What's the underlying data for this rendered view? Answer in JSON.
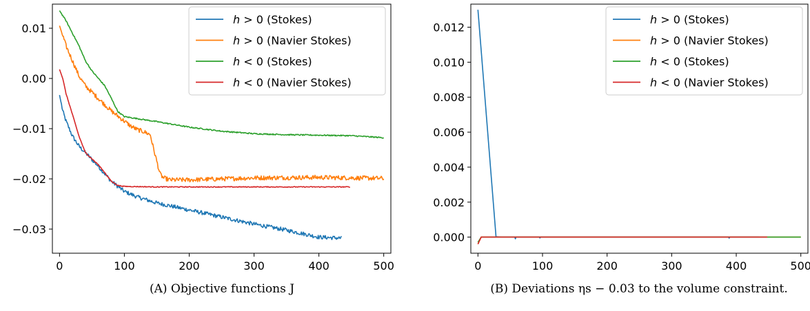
{
  "chart_data": [
    {
      "type": "line",
      "caption": "(A) Objective functions J",
      "xlim": [
        -11,
        511
      ],
      "ylim": [
        -0.0348,
        0.0148
      ],
      "xticks": [
        0,
        100,
        200,
        300,
        400,
        500
      ],
      "yticks": [
        0.01,
        0.0,
        -0.01,
        -0.02,
        -0.03
      ],
      "ytick_labels": [
        "0.01",
        "0.00",
        "−0.01",
        "−0.02",
        "−0.03"
      ],
      "legend_position": "top-right",
      "series": [
        {
          "name": "h > 0 (Stokes)",
          "color": "#1f77b4",
          "noise": 0.0004,
          "end": 435,
          "points": [
            [
              0,
              -0.0033
            ],
            [
              5,
              -0.0065
            ],
            [
              10,
              -0.0085
            ],
            [
              20,
              -0.0115
            ],
            [
              30,
              -0.0135
            ],
            [
              40,
              -0.0148
            ],
            [
              60,
              -0.0175
            ],
            [
              80,
              -0.0205
            ],
            [
              100,
              -0.0225
            ],
            [
              120,
              -0.0236
            ],
            [
              150,
              -0.0248
            ],
            [
              200,
              -0.0262
            ],
            [
              250,
              -0.0276
            ],
            [
              300,
              -0.029
            ],
            [
              350,
              -0.0302
            ],
            [
              400,
              -0.0316
            ],
            [
              435,
              -0.0318
            ]
          ]
        },
        {
          "name": "h > 0 (Navier Stokes)",
          "color": "#ff7f0e",
          "noise": 0.00045,
          "end": 500,
          "points": [
            [
              0,
              0.0105
            ],
            [
              5,
              0.0085
            ],
            [
              10,
              0.0065
            ],
            [
              20,
              0.0035
            ],
            [
              30,
              0.0005
            ],
            [
              40,
              -0.0015
            ],
            [
              60,
              -0.004
            ],
            [
              80,
              -0.0065
            ],
            [
              90,
              -0.0075
            ],
            [
              100,
              -0.0085
            ],
            [
              110,
              -0.0095
            ],
            [
              120,
              -0.0102
            ],
            [
              130,
              -0.0106
            ],
            [
              140,
              -0.0112
            ],
            [
              145,
              -0.014
            ],
            [
              150,
              -0.0165
            ],
            [
              155,
              -0.019
            ],
            [
              160,
              -0.0198
            ],
            [
              170,
              -0.0202
            ],
            [
              200,
              -0.0202
            ],
            [
              300,
              -0.0198
            ],
            [
              400,
              -0.0197
            ],
            [
              500,
              -0.0199
            ]
          ]
        },
        {
          "name": "h < 0 (Stokes)",
          "color": "#2ca02c",
          "noise": 0.00012,
          "end": 500,
          "points": [
            [
              0,
              0.0135
            ],
            [
              10,
              0.0115
            ],
            [
              20,
              0.009
            ],
            [
              30,
              0.0065
            ],
            [
              40,
              0.0035
            ],
            [
              50,
              0.0015
            ],
            [
              60,
              0.0
            ],
            [
              70,
              -0.0015
            ],
            [
              80,
              -0.004
            ],
            [
              90,
              -0.0066
            ],
            [
              100,
              -0.0076
            ],
            [
              120,
              -0.008
            ],
            [
              150,
              -0.0086
            ],
            [
              200,
              -0.0097
            ],
            [
              250,
              -0.0105
            ],
            [
              300,
              -0.011
            ],
            [
              350,
              -0.0112
            ],
            [
              400,
              -0.0113
            ],
            [
              450,
              -0.0114
            ],
            [
              500,
              -0.0118
            ]
          ]
        },
        {
          "name": "h < 0 (Navier Stokes)",
          "color": "#d62728",
          "noise": 8e-05,
          "end": 448,
          "points": [
            [
              0,
              0.0018
            ],
            [
              5,
              0.0
            ],
            [
              10,
              -0.003
            ],
            [
              20,
              -0.0072
            ],
            [
              30,
              -0.0115
            ],
            [
              40,
              -0.0148
            ],
            [
              50,
              -0.016
            ],
            [
              60,
              -0.0172
            ],
            [
              70,
              -0.0188
            ],
            [
              80,
              -0.0205
            ],
            [
              90,
              -0.0213
            ],
            [
              100,
              -0.0215
            ],
            [
              150,
              -0.0216
            ],
            [
              200,
              -0.0216
            ],
            [
              300,
              -0.0216
            ],
            [
              448,
              -0.0216
            ]
          ]
        }
      ]
    },
    {
      "type": "line",
      "caption": "(B) Deviations ηs − 0.03 to the volume constraint.",
      "xlim": [
        -11,
        511
      ],
      "ylim": [
        -0.00092,
        0.01332
      ],
      "xticks": [
        0,
        100,
        200,
        300,
        400,
        500
      ],
      "yticks": [
        0.012,
        0.01,
        0.008,
        0.006,
        0.004,
        0.002,
        0.0
      ],
      "ytick_labels": [
        "0.012",
        "0.010",
        "0.008",
        "0.006",
        "0.004",
        "0.002",
        "0.000"
      ],
      "legend_position": "top-right",
      "series": [
        {
          "name": "h > 0 (Stokes)",
          "color": "#1f77b4",
          "noise": 0,
          "end": 435,
          "points": [
            [
              0,
              0.013
            ],
            [
              28,
              2e-05
            ],
            [
              40,
              0.0
            ],
            [
              57,
              0.0
            ],
            [
              58,
              -0.0001
            ],
            [
              59,
              0.0
            ],
            [
              95,
              0.0
            ],
            [
              96,
              -5e-05
            ],
            [
              97,
              0.0
            ],
            [
              388,
              0.0
            ],
            [
              389,
              -6e-05
            ],
            [
              390,
              0.0
            ],
            [
              435,
              0.0
            ]
          ]
        },
        {
          "name": "h > 0 (Navier Stokes)",
          "color": "#ff7f0e",
          "noise": 0,
          "end": 500,
          "points": [
            [
              0,
              -0.0004
            ],
            [
              5,
              0.0
            ],
            [
              500,
              0.0
            ]
          ]
        },
        {
          "name": "h < 0 (Stokes)",
          "color": "#2ca02c",
          "noise": 0,
          "end": 500,
          "points": [
            [
              0,
              -0.0003
            ],
            [
              5,
              0.0
            ],
            [
              500,
              0.0
            ]
          ]
        },
        {
          "name": "h < 0 (Navier Stokes)",
          "color": "#d62728",
          "noise": 0,
          "end": 448,
          "points": [
            [
              0,
              -0.0004
            ],
            [
              5,
              0.0
            ],
            [
              448,
              0.0
            ]
          ]
        }
      ]
    }
  ]
}
